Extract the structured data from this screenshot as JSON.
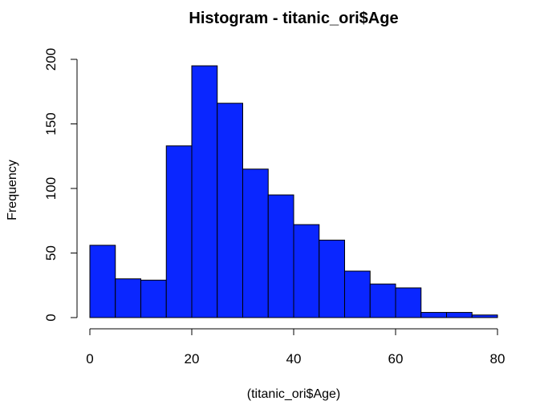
{
  "chart_data": {
    "type": "bar",
    "title": "Histogram - titanic_ori$Age",
    "xlabel": "(titanic_ori$Age)",
    "ylabel": "Frequency",
    "bins": [
      {
        "start": 0,
        "end": 5,
        "count": 56
      },
      {
        "start": 5,
        "end": 10,
        "count": 30
      },
      {
        "start": 10,
        "end": 15,
        "count": 29
      },
      {
        "start": 15,
        "end": 20,
        "count": 133
      },
      {
        "start": 20,
        "end": 25,
        "count": 195
      },
      {
        "start": 25,
        "end": 30,
        "count": 166
      },
      {
        "start": 30,
        "end": 35,
        "count": 115
      },
      {
        "start": 35,
        "end": 40,
        "count": 95
      },
      {
        "start": 40,
        "end": 45,
        "count": 72
      },
      {
        "start": 45,
        "end": 50,
        "count": 60
      },
      {
        "start": 50,
        "end": 55,
        "count": 36
      },
      {
        "start": 55,
        "end": 60,
        "count": 26
      },
      {
        "start": 60,
        "end": 65,
        "count": 23
      },
      {
        "start": 65,
        "end": 70,
        "count": 4
      },
      {
        "start": 70,
        "end": 75,
        "count": 4
      },
      {
        "start": 75,
        "end": 80,
        "count": 2
      }
    ],
    "xlim": [
      0,
      80
    ],
    "ylim": [
      0,
      200
    ],
    "xticks": [
      0,
      20,
      40,
      60,
      80
    ],
    "yticks": [
      0,
      50,
      100,
      150,
      200
    ],
    "bar_color": "#0A26FF",
    "grid": false,
    "legend": "none"
  }
}
